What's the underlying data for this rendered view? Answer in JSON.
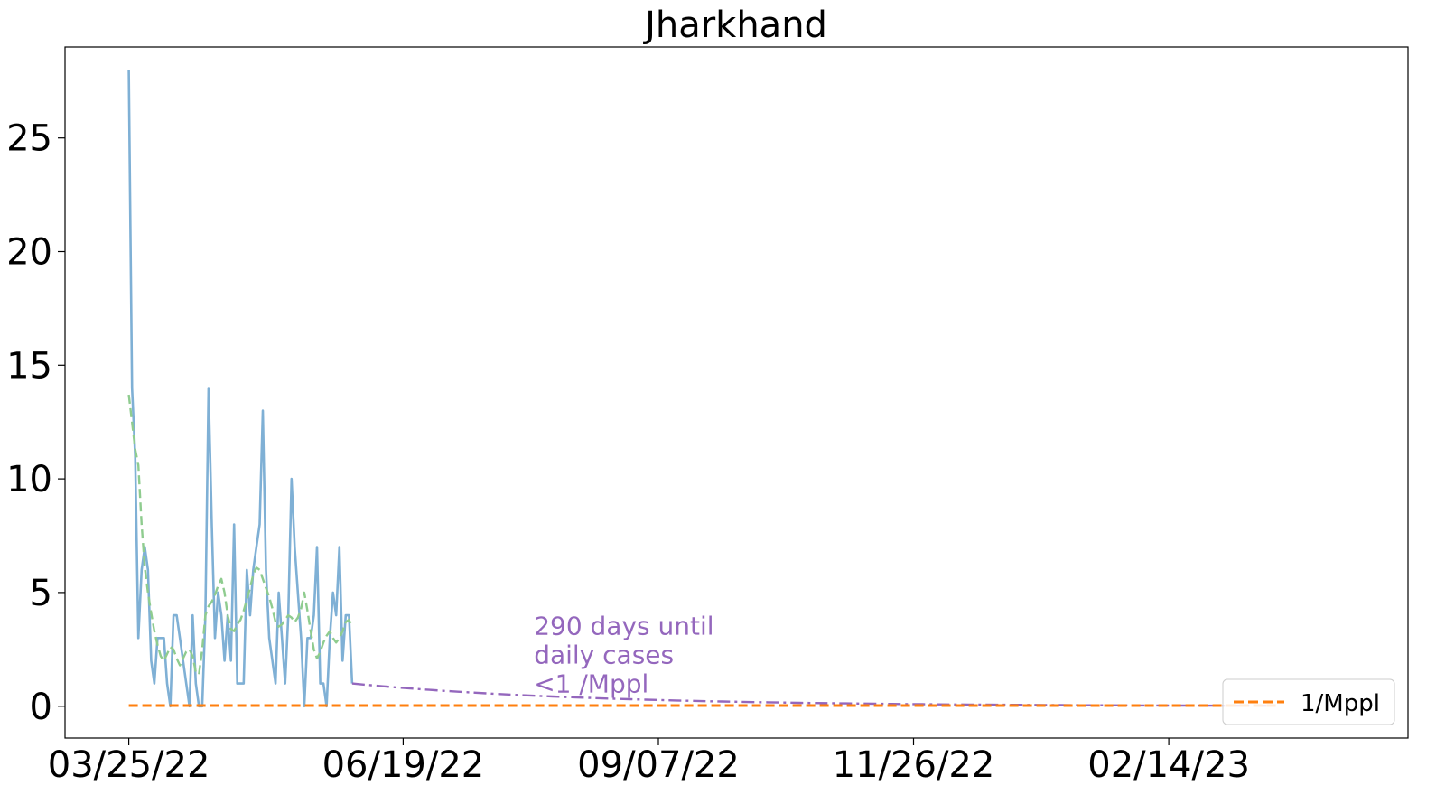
{
  "chart_data": {
    "type": "line",
    "title": "Jharkhand",
    "xlabel": "",
    "ylabel": "",
    "x_axis": {
      "type": "date",
      "range": [
        "2022-03-05",
        "2023-04-30"
      ],
      "ticks": [
        {
          "date": "2022-03-25",
          "label": "03/25/22"
        },
        {
          "date": "2022-06-19",
          "label": "06/19/22"
        },
        {
          "date": "2022-09-07",
          "label": "09/07/22"
        },
        {
          "date": "2022-11-26",
          "label": "11/26/22"
        },
        {
          "date": "2023-02-14",
          "label": "02/14/23"
        }
      ]
    },
    "y_axis": {
      "ylim": [
        -1.4,
        29
      ],
      "ticks": [
        {
          "value": 0,
          "label": "0"
        },
        {
          "value": 5,
          "label": "5"
        },
        {
          "value": 10,
          "label": "10"
        },
        {
          "value": 15,
          "label": "15"
        },
        {
          "value": 20,
          "label": "20"
        },
        {
          "value": 25,
          "label": "25"
        }
      ]
    },
    "grid": false,
    "legend": {
      "placement": "lower right",
      "entries": [
        "1/Mppl"
      ]
    },
    "series": [
      {
        "role": "daily",
        "color": "#7fb0d5",
        "style": "solid",
        "start_date": "2022-03-25",
        "interval_days": 1,
        "values": [
          28,
          14,
          11,
          3,
          6,
          7,
          6,
          2,
          1,
          3,
          3,
          3,
          1,
          0,
          4,
          4,
          3,
          2,
          1,
          0,
          4,
          1,
          0,
          0,
          4,
          14,
          8,
          3,
          5,
          4,
          2,
          4,
          2,
          8,
          1,
          1,
          1,
          6,
          4,
          6,
          7,
          8,
          13,
          6,
          3,
          2,
          1,
          5,
          3,
          1,
          4,
          10,
          7,
          5,
          3,
          0,
          3,
          3,
          4,
          7,
          1,
          1,
          0,
          3,
          5,
          4,
          7,
          2,
          4,
          4,
          1
        ]
      },
      {
        "role": "moving-average",
        "color": "#8fcc8f",
        "style": "dashed",
        "start_date": "2022-03-25",
        "interval_days": 1,
        "values": [
          13.7,
          12.5,
          11.3,
          10.6,
          8.0,
          6.1,
          5.0,
          4.1,
          3.3,
          2.7,
          2.2,
          2.0,
          2.3,
          2.6,
          2.5,
          2.1,
          1.8,
          2.1,
          2.4,
          2.5,
          2.2,
          1.5,
          1.4,
          2.5,
          4.0,
          4.4,
          4.6,
          4.9,
          5.3,
          5.6,
          5.0,
          4.0,
          3.4,
          3.3,
          3.6,
          3.8,
          4.2,
          4.7,
          5.2,
          5.8,
          6.1,
          6.0,
          5.6,
          5.2,
          4.8,
          4.3,
          3.7,
          3.5,
          3.6,
          3.8,
          4.0,
          3.9,
          3.7,
          3.9,
          4.3,
          5.0,
          4.2,
          3.3,
          2.5,
          2.1,
          2.4,
          2.8,
          3.1,
          3.3,
          3.0,
          2.8,
          3.0,
          3.3,
          3.7,
          3.8,
          3.5
        ]
      },
      {
        "role": "projection",
        "color": "#9467bd",
        "style": "dashdot",
        "start_date": "2022-06-03",
        "end_date": "2023-03-20",
        "start_value": 1.0,
        "end_value": 0.02
      },
      {
        "name": "1/Mppl",
        "role": "threshold",
        "color": "#ff7f0e",
        "style": "dashed",
        "start_date": "2022-03-25",
        "end_date": "2023-03-20",
        "value": 0.03
      }
    ],
    "annotations": [
      {
        "lines": [
          "290 days until",
          "daily cases",
          "<1 /Mppl"
        ],
        "color": "#9467bd",
        "date": "2022-07-30",
        "value": 0.6
      }
    ]
  }
}
